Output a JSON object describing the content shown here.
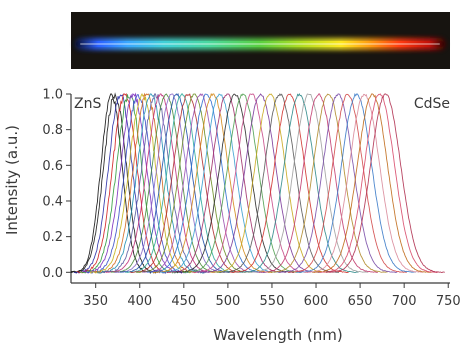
{
  "chart_data": {
    "type": "line",
    "xlabel": "Wavelength (nm)",
    "ylabel": "Intensity (a.u.)",
    "xlim": [
      322,
      752
    ],
    "ylim": [
      -0.06,
      1.0
    ],
    "xticks": [
      350,
      400,
      450,
      500,
      550,
      600,
      650,
      700,
      750
    ],
    "xtick_labels": [
      "350",
      "400",
      "450",
      "500",
      "550",
      "600",
      "650",
      "700",
      "750"
    ],
    "yticks": [
      0.0,
      0.2,
      0.4,
      0.6,
      0.8,
      1.0
    ],
    "ytick_labels": [
      "0.0",
      "0.2",
      "0.4",
      "0.6",
      "0.8",
      "1.0"
    ],
    "annotations": {
      "left": "ZnS",
      "right": "CdSe"
    },
    "grid": false,
    "inset": "photograph of a glowing rod whose emission shifts from blue through green and yellow to red",
    "series": [
      {
        "peak": 368,
        "fwhm": 28,
        "color": "#111111"
      },
      {
        "peak": 372,
        "fwhm": 30,
        "color": "#1a1a1a"
      },
      {
        "peak": 378,
        "fwhm": 31,
        "color": "#2b2fa8"
      },
      {
        "peak": 383,
        "fwhm": 32,
        "color": "#d21f1f"
      },
      {
        "peak": 388,
        "fwhm": 33,
        "color": "#2e9a3c"
      },
      {
        "peak": 393,
        "fwhm": 34,
        "color": "#7a2fbf"
      },
      {
        "peak": 398,
        "fwhm": 34,
        "color": "#3a4fc9"
      },
      {
        "peak": 403,
        "fwhm": 35,
        "color": "#c7b21a"
      },
      {
        "peak": 408,
        "fwhm": 35,
        "color": "#d2691e"
      },
      {
        "peak": 413,
        "fwhm": 36,
        "color": "#1f8fb5"
      },
      {
        "peak": 418,
        "fwhm": 36,
        "color": "#5a5aa0"
      },
      {
        "peak": 424,
        "fwhm": 37,
        "color": "#c0307a"
      },
      {
        "peak": 430,
        "fwhm": 37,
        "color": "#4a8a3a"
      },
      {
        "peak": 436,
        "fwhm": 38,
        "color": "#8a6ac8"
      },
      {
        "peak": 442,
        "fwhm": 38,
        "color": "#1d4fa8"
      },
      {
        "peak": 448,
        "fwhm": 38,
        "color": "#2aa89a"
      },
      {
        "peak": 455,
        "fwhm": 39,
        "color": "#b03030"
      },
      {
        "peak": 462,
        "fwhm": 39,
        "color": "#6b8e23"
      },
      {
        "peak": 469,
        "fwhm": 39,
        "color": "#9a4fb0"
      },
      {
        "peak": 476,
        "fwhm": 40,
        "color": "#2f6fcf"
      },
      {
        "peak": 483,
        "fwhm": 40,
        "color": "#d48a1a"
      },
      {
        "peak": 491,
        "fwhm": 40,
        "color": "#3aa0d0"
      },
      {
        "peak": 499,
        "fwhm": 40,
        "color": "#a02f6a"
      },
      {
        "peak": 508,
        "fwhm": 40,
        "color": "#2a2a2a"
      },
      {
        "peak": 517,
        "fwhm": 40,
        "color": "#4fa04f"
      },
      {
        "peak": 527,
        "fwhm": 40,
        "color": "#c84b8a"
      },
      {
        "peak": 537,
        "fwhm": 40,
        "color": "#7a3a9a"
      },
      {
        "peak": 548,
        "fwhm": 40,
        "color": "#c9a81f"
      },
      {
        "peak": 559,
        "fwhm": 40,
        "color": "#5a5a5a"
      },
      {
        "peak": 570,
        "fwhm": 40,
        "color": "#d2342f"
      },
      {
        "peak": 581,
        "fwhm": 40,
        "color": "#2f8a8a"
      },
      {
        "peak": 592,
        "fwhm": 40,
        "color": "#a0a0a0"
      },
      {
        "peak": 603,
        "fwhm": 40,
        "color": "#c23b6e"
      },
      {
        "peak": 614,
        "fwhm": 40,
        "color": "#b08a2a"
      },
      {
        "peak": 625,
        "fwhm": 40,
        "color": "#7a4fa8"
      },
      {
        "peak": 636,
        "fwhm": 40,
        "color": "#d24a4a"
      },
      {
        "peak": 646,
        "fwhm": 40,
        "color": "#3a7ac8"
      },
      {
        "peak": 655,
        "fwhm": 40,
        "color": "#d98a9a"
      },
      {
        "peak": 664,
        "fwhm": 40,
        "color": "#c06a1a"
      },
      {
        "peak": 672,
        "fwhm": 40,
        "color": "#d84a6a"
      },
      {
        "peak": 679,
        "fwhm": 40,
        "color": "#b03050"
      }
    ]
  }
}
